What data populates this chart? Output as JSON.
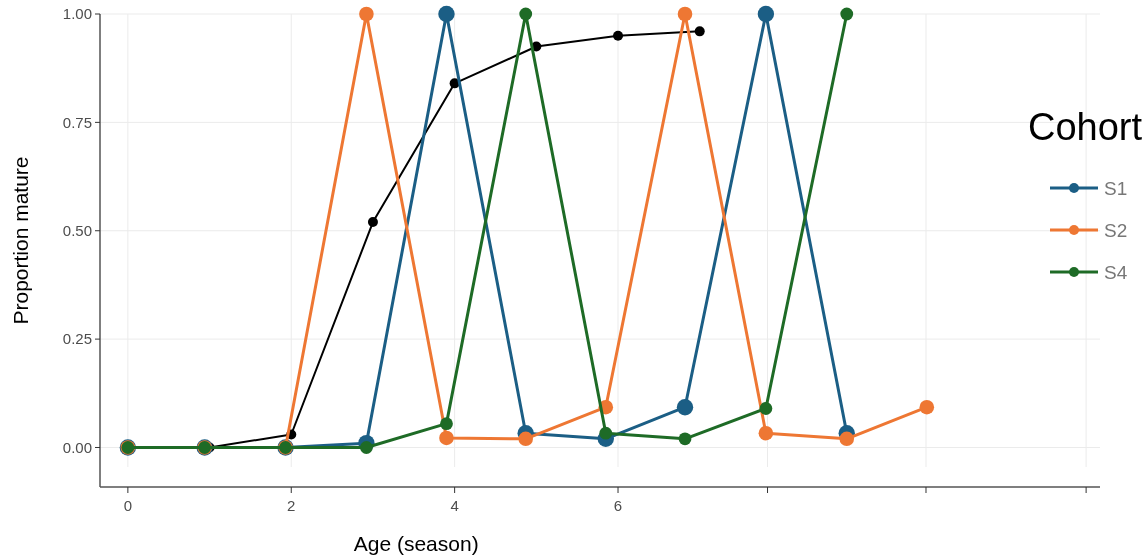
{
  "chart_data": {
    "type": "line",
    "xlabel": "Age (season)",
    "ylabel": "Proportion mature",
    "legend_title": "Cohort",
    "legend": "right",
    "marker": "circle",
    "line_style": "solid",
    "grid": true,
    "xlim": [
      -0.28,
      11.9
    ],
    "xticks": [
      0,
      2,
      4,
      6,
      {
        "value": 7.83,
        "label": null
      },
      {
        "value": 9.77,
        "label": null
      },
      {
        "value": 11.73,
        "label": null
      }
    ],
    "ylim": [
      -0.045,
      1.0
    ],
    "yticks": [
      {
        "value": 0,
        "label": "0.00"
      },
      {
        "value": 0.25,
        "label": "0.25"
      },
      {
        "value": 0.5,
        "label": "0.50"
      },
      {
        "value": 0.75,
        "label": "0.75"
      },
      {
        "value": 1,
        "label": "1.00"
      }
    ],
    "series": [
      {
        "color": "#000000",
        "x": [
          0,
          1,
          2,
          3,
          4,
          5,
          6,
          7
        ],
        "values": [
          0,
          0,
          0.03,
          0.52,
          0.84,
          0.925,
          0.95,
          0.96
        ]
      },
      {
        "name": "S1",
        "color": "#1b5e85",
        "x": [
          0,
          0.94,
          1.93,
          2.92,
          3.9,
          4.87,
          5.85,
          6.82,
          7.81,
          8.8
        ],
        "values": [
          0,
          0,
          0,
          0.01,
          1,
          0.033,
          0.02,
          0.093,
          1,
          0.033
        ]
      },
      {
        "name": "S2",
        "color": "#ee7733",
        "x": [
          0,
          0.94,
          1.93,
          2.92,
          3.9,
          4.87,
          5.85,
          6.82,
          7.81,
          8.8,
          9.78
        ],
        "values": [
          0,
          0,
          0,
          1,
          0.022,
          0.02,
          0.093,
          1,
          0.033,
          0.02,
          0.093
        ]
      },
      {
        "name": "S4",
        "color": "#1e6b26",
        "x": [
          0,
          0.94,
          1.93,
          2.92,
          3.9,
          4.87,
          5.85,
          6.82,
          7.81,
          8.8
        ],
        "values": [
          0,
          0,
          0,
          0,
          0.055,
          1,
          0.033,
          0.02,
          0.09,
          1
        ]
      }
    ]
  }
}
